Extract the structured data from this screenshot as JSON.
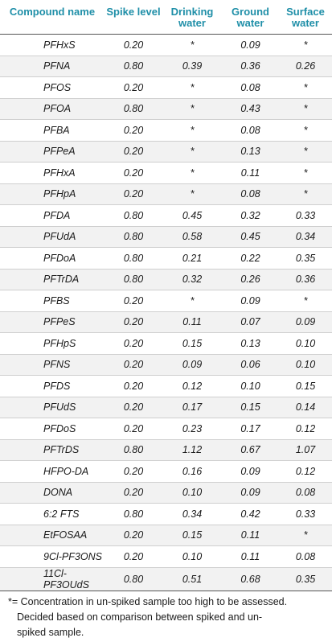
{
  "headers": [
    "Compound name",
    "Spike level",
    "Drinking water",
    "Ground water",
    "Surface water"
  ],
  "rows": [
    [
      "PFHxS",
      "0.20",
      "*",
      "0.09",
      "*"
    ],
    [
      "PFNA",
      "0.80",
      "0.39",
      "0.36",
      "0.26"
    ],
    [
      "PFOS",
      "0.20",
      "*",
      "0.08",
      "*"
    ],
    [
      "PFOA",
      "0.80",
      "*",
      "0.43",
      "*"
    ],
    [
      "PFBA",
      "0.20",
      "*",
      "0.08",
      "*"
    ],
    [
      "PFPeA",
      "0.20",
      "*",
      "0.13",
      "*"
    ],
    [
      "PFHxA",
      "0.20",
      "*",
      "0.11",
      "*"
    ],
    [
      "PFHpA",
      "0.20",
      "*",
      "0.08",
      "*"
    ],
    [
      "PFDA",
      "0.80",
      "0.45",
      "0.32",
      "0.33"
    ],
    [
      "PFUdA",
      "0.80",
      "0.58",
      "0.45",
      "0.34"
    ],
    [
      "PFDoA",
      "0.80",
      "0.21",
      "0.22",
      "0.35"
    ],
    [
      "PFTrDA",
      "0.80",
      "0.32",
      "0.26",
      "0.36"
    ],
    [
      "PFBS",
      "0.20",
      "*",
      "0.09",
      "*"
    ],
    [
      "PFPeS",
      "0.20",
      "0.11",
      "0.07",
      "0.09"
    ],
    [
      "PFHpS",
      "0.20",
      "0.15",
      "0.13",
      "0.10"
    ],
    [
      "PFNS",
      "0.20",
      "0.09",
      "0.06",
      "0.10"
    ],
    [
      "PFDS",
      "0.20",
      "0.12",
      "0.10",
      "0.15"
    ],
    [
      "PFUdS",
      "0.20",
      "0.17",
      "0.15",
      "0.14"
    ],
    [
      "PFDoS",
      "0.20",
      "0.23",
      "0.17",
      "0.12"
    ],
    [
      "PFTrDS",
      "0.80",
      "1.12",
      "0.67",
      "1.07"
    ],
    [
      "HFPO-DA",
      "0.20",
      "0.16",
      "0.09",
      "0.12"
    ],
    [
      "DONA",
      "0.20",
      "0.10",
      "0.09",
      "0.08"
    ],
    [
      "6:2 FTS",
      "0.80",
      "0.34",
      "0.42",
      "0.33"
    ],
    [
      "EtFOSAA",
      "0.20",
      "0.15",
      "0.11",
      "*"
    ],
    [
      "9Cl-PF3ONS",
      "0.20",
      "0.10",
      "0.11",
      "0.08"
    ],
    [
      "11Cl-PF3OUdS",
      "0.80",
      "0.51",
      "0.68",
      "0.35"
    ]
  ],
  "footnote": {
    "line1": "*= Concentration in un-spiked sample too high to be assessed.",
    "line2": "Decided based on comparison between spiked and un-",
    "line3": "spiked sample."
  },
  "colors": {
    "header_text": "#1f8fa8",
    "stripe": "#f2f2f2"
  }
}
